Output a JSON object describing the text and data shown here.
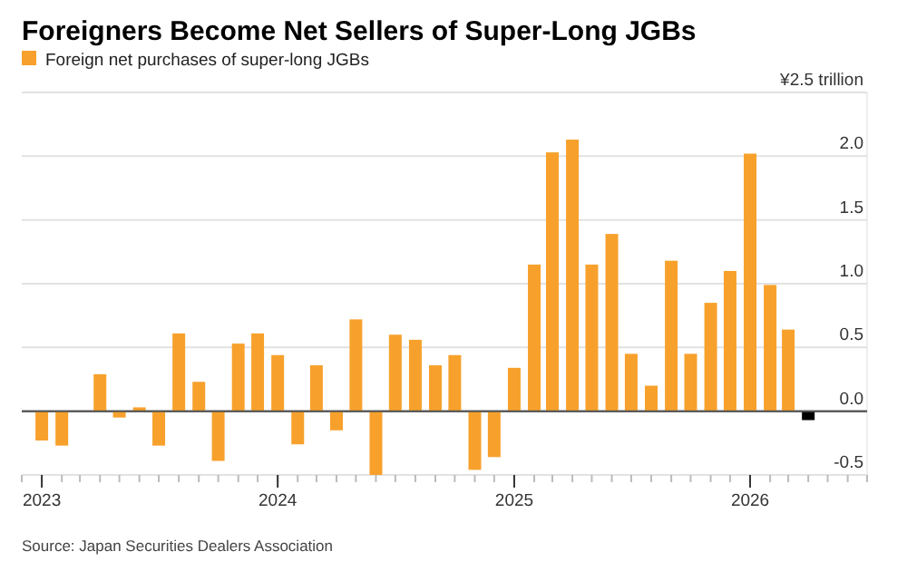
{
  "chart_data": {
    "type": "bar",
    "title": "Foreigners Become Net Sellers of Super-Long JGBs",
    "x": [
      "2023-01",
      "2023-02",
      "2023-03",
      "2023-04",
      "2023-05",
      "2023-06",
      "2023-07",
      "2023-08",
      "2023-09",
      "2023-10",
      "2023-11",
      "2023-12",
      "2024-01",
      "2024-02",
      "2024-03",
      "2024-04",
      "2024-05",
      "2024-06",
      "2024-07",
      "2024-08",
      "2024-09",
      "2024-10",
      "2024-11",
      "2024-12",
      "2025-01",
      "2025-02",
      "2025-03",
      "2025-04",
      "2025-05",
      "2025-06",
      "2025-07",
      "2025-08",
      "2025-09",
      "2025-10",
      "2025-11",
      "2025-12",
      "2026-01",
      "2026-02",
      "2026-03",
      "2026-04"
    ],
    "series": [
      {
        "name": "Foreign net purchases of super-long JGBs",
        "color": "#f7a12c",
        "values": [
          -0.23,
          -0.27,
          0,
          0.29,
          -0.05,
          0.03,
          -0.27,
          0.61,
          0.23,
          -0.39,
          0.53,
          0.61,
          0.44,
          -0.26,
          0.36,
          -0.15,
          0.72,
          -0.5,
          0.6,
          0.56,
          0.36,
          0.44,
          -0.46,
          -0.36,
          0.34,
          1.15,
          2.03,
          2.13,
          1.15,
          1.39,
          0.45,
          0.2,
          1.18,
          0.45,
          0.85,
          1.1,
          2.02,
          0.99,
          0.64,
          -0.07
        ],
        "colors": [
          "#f7a12c",
          "#f7a12c",
          "#f7a12c",
          "#f7a12c",
          "#f7a12c",
          "#f7a12c",
          "#f7a12c",
          "#f7a12c",
          "#f7a12c",
          "#f7a12c",
          "#f7a12c",
          "#f7a12c",
          "#f7a12c",
          "#f7a12c",
          "#f7a12c",
          "#f7a12c",
          "#f7a12c",
          "#f7a12c",
          "#f7a12c",
          "#f7a12c",
          "#f7a12c",
          "#f7a12c",
          "#f7a12c",
          "#f7a12c",
          "#f7a12c",
          "#f7a12c",
          "#f7a12c",
          "#f7a12c",
          "#f7a12c",
          "#f7a12c",
          "#f7a12c",
          "#f7a12c",
          "#f7a12c",
          "#f7a12c",
          "#f7a12c",
          "#f7a12c",
          "#f7a12c",
          "#f7a12c",
          "#f7a12c",
          "#000000"
        ]
      }
    ],
    "xlim": [
      "2022-12",
      "2026-07"
    ],
    "xticks": [
      {
        "value": "2023-01",
        "label": "2023"
      },
      {
        "value": "2024-01",
        "label": "2024"
      },
      {
        "value": "2025-01",
        "label": "2025"
      },
      {
        "value": "2026-01",
        "label": "2026"
      }
    ],
    "ylim": [
      -0.5,
      2.5
    ],
    "yticks": [
      -0.5,
      {
        "value": 0,
        "label": "0.0"
      },
      0.5,
      {
        "value": 1,
        "label": "1.0"
      },
      1.5,
      {
        "value": 2,
        "label": "2.0"
      },
      {
        "value": 2.5,
        "label": "¥2.5 trillion"
      }
    ],
    "grid": "y",
    "legend": "top left",
    "annotations": [
      "Source: Japan Securities Dealers Association"
    ]
  }
}
